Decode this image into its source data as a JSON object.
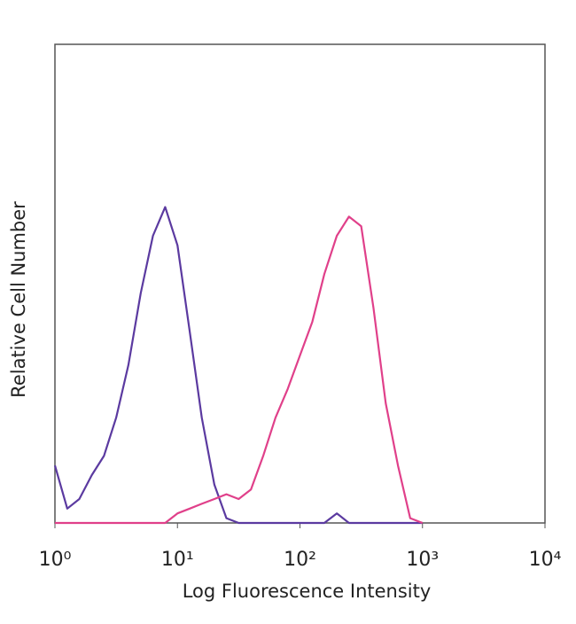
{
  "chart_data": {
    "type": "line",
    "x_label": "Log Fluorescence Intensity",
    "y_label": "Relative Cell Number",
    "xscale": "log",
    "xlim": [
      1,
      10000
    ],
    "ylim": [
      0,
      100
    ],
    "xticks": [
      {
        "value": 1,
        "label": "10⁰"
      },
      {
        "value": 10,
        "label": "10¹"
      },
      {
        "value": 100,
        "label": "10²"
      },
      {
        "value": 1000,
        "label": "10³"
      },
      {
        "value": 10000,
        "label": "10⁴"
      }
    ],
    "x": [
      1,
      1.26,
      1.58,
      2,
      2.51,
      3.16,
      3.98,
      5.01,
      6.31,
      7.94,
      10,
      12.6,
      15.8,
      20,
      25.1,
      31.6,
      39.8,
      50.1,
      63.1,
      79.4,
      100,
      126,
      158,
      200,
      251,
      316,
      398,
      501,
      631,
      794,
      1000
    ],
    "series": [
      {
        "color": "#5b3aa0",
        "values": [
          12,
          3,
          5,
          10,
          14,
          22,
          33,
          48,
          60,
          66,
          58,
          40,
          22,
          8,
          1,
          0,
          0,
          0,
          0,
          0,
          0,
          0,
          0,
          2,
          0,
          0,
          0,
          0,
          0,
          0,
          0
        ]
      },
      {
        "color": "#e0408a",
        "values": [
          0,
          0,
          0,
          0,
          0,
          0,
          0,
          0,
          0,
          0,
          2,
          3,
          4,
          5,
          6,
          5,
          7,
          14,
          22,
          28,
          35,
          42,
          52,
          60,
          64,
          62,
          45,
          25,
          12,
          1,
          0
        ]
      }
    ]
  }
}
